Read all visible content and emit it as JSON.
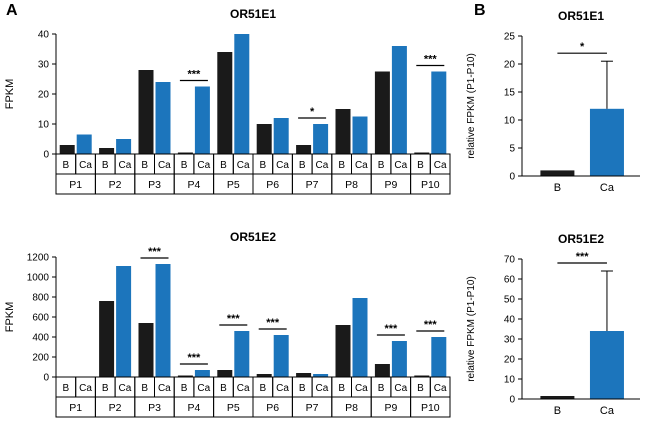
{
  "panels": {
    "a_label": "A",
    "b_label": "B"
  },
  "colors": {
    "b_bar": "#1a1a1a",
    "ca_bar": "#1c75bc",
    "axis": "#000000"
  },
  "chart_data": [
    {
      "id": "or51e1-patients",
      "type": "bar",
      "title": "OR51E1",
      "ylabel": "FPKM",
      "ylim": [
        0,
        40
      ],
      "yticks": [
        0,
        10,
        20,
        30,
        40
      ],
      "grid": false,
      "legend": "none",
      "categories": [
        "P1",
        "P2",
        "P3",
        "P4",
        "P5",
        "P6",
        "P7",
        "P8",
        "P9",
        "P10"
      ],
      "group_labels": [
        "B",
        "Ca"
      ],
      "series": [
        {
          "name": "B",
          "color": "#1a1a1a",
          "values": [
            3,
            2,
            28,
            0.5,
            34,
            10,
            3,
            15,
            27.5,
            0.5
          ]
        },
        {
          "name": "Ca",
          "color": "#1c75bc",
          "values": [
            6.5,
            5,
            24,
            22.5,
            40,
            12,
            10,
            12.5,
            36,
            27.5
          ]
        }
      ],
      "significance": [
        {
          "category": "P4",
          "label": "***"
        },
        {
          "category": "P7",
          "label": "*"
        },
        {
          "category": "P10",
          "label": "***"
        }
      ]
    },
    {
      "id": "or51e2-patients",
      "type": "bar",
      "title": "OR51E2",
      "ylabel": "FPKM",
      "ylim": [
        0,
        1200
      ],
      "yticks": [
        0,
        200,
        400,
        600,
        800,
        1000,
        1200
      ],
      "grid": false,
      "legend": "none",
      "categories": [
        "P1",
        "P2",
        "P3",
        "P4",
        "P5",
        "P6",
        "P7",
        "P8",
        "P9",
        "P10"
      ],
      "group_labels": [
        "B",
        "Ca"
      ],
      "series": [
        {
          "name": "B",
          "color": "#1a1a1a",
          "values": [
            5,
            760,
            540,
            15,
            70,
            30,
            40,
            520,
            130,
            15
          ]
        },
        {
          "name": "Ca",
          "color": "#1c75bc",
          "values": [
            5,
            1110,
            1130,
            70,
            460,
            420,
            30,
            790,
            360,
            400
          ]
        }
      ],
      "significance": [
        {
          "category": "P3",
          "label": "***"
        },
        {
          "category": "P4",
          "label": "***"
        },
        {
          "category": "P5",
          "label": "***"
        },
        {
          "category": "P6",
          "label": "***"
        },
        {
          "category": "P9",
          "label": "***"
        },
        {
          "category": "P10",
          "label": "***"
        }
      ]
    },
    {
      "id": "or51e1-summary",
      "type": "bar",
      "title": "OR51E1",
      "ylabel": "relative FPKM (P1-P10)",
      "ylim": [
        0,
        25
      ],
      "yticks": [
        0,
        5,
        10,
        15,
        20,
        25
      ],
      "grid": false,
      "legend": "none",
      "categories": [
        "B",
        "Ca"
      ],
      "values": [
        1,
        12
      ],
      "errors_upper": [
        0,
        8.5
      ],
      "colors": [
        "#1a1a1a",
        "#1c75bc"
      ],
      "significance": [
        {
          "between": [
            "B",
            "Ca"
          ],
          "label": "*"
        }
      ]
    },
    {
      "id": "or51e2-summary",
      "type": "bar",
      "title": "OR51E2",
      "ylabel": "relative FPKM (P1-P10)",
      "ylim": [
        0,
        70
      ],
      "yticks": [
        0,
        10,
        20,
        30,
        40,
        50,
        60,
        70
      ],
      "grid": false,
      "legend": "none",
      "categories": [
        "B",
        "Ca"
      ],
      "values": [
        1.5,
        34
      ],
      "errors_upper": [
        0,
        30
      ],
      "colors": [
        "#1a1a1a",
        "#1c75bc"
      ],
      "significance": [
        {
          "between": [
            "B",
            "Ca"
          ],
          "label": "***"
        }
      ]
    }
  ]
}
